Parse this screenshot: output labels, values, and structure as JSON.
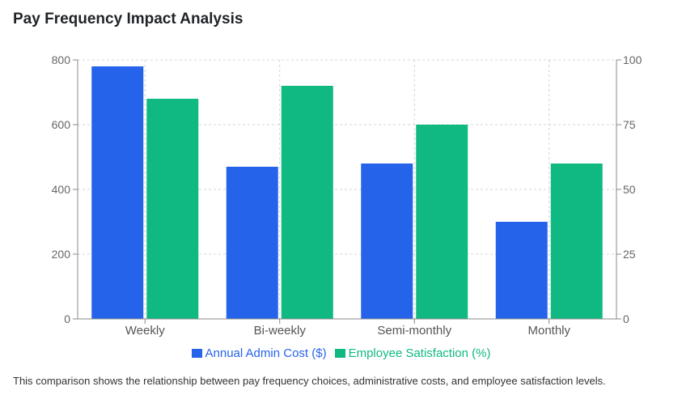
{
  "title": "Pay Frequency Impact Analysis",
  "caption": "This comparison shows the relationship between pay frequency choices, administrative costs, and employee satisfaction levels.",
  "chart_data": {
    "type": "bar",
    "categories": [
      "Weekly",
      "Bi-weekly",
      "Semi-monthly",
      "Monthly"
    ],
    "series": [
      {
        "name": "Annual Admin Cost ($)",
        "axis": "left",
        "color": "#2563eb",
        "values": [
          780,
          470,
          480,
          300
        ]
      },
      {
        "name": "Employee Satisfaction (%)",
        "axis": "right",
        "color": "#10b981",
        "values": [
          85,
          90,
          75,
          60
        ]
      }
    ],
    "y_left": {
      "min": 0,
      "max": 800,
      "ticks": [
        0,
        200,
        400,
        600,
        800
      ]
    },
    "y_right": {
      "min": 0,
      "max": 100,
      "ticks": [
        0,
        25,
        50,
        75,
        100
      ]
    },
    "grid": true,
    "legend": "bottom-center"
  }
}
